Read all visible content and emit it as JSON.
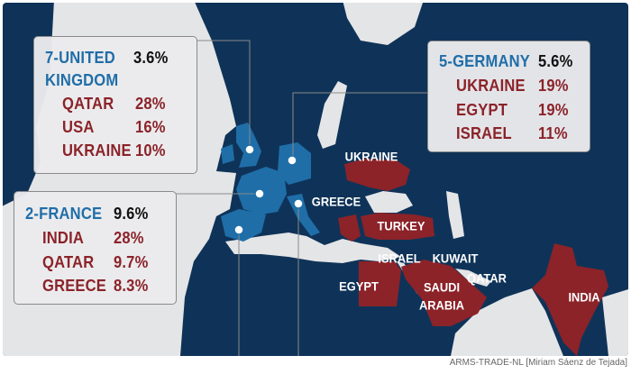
{
  "colors": {
    "sea": "#e4e5e7",
    "land": "#0f3358",
    "exporter": "#1f6ea8",
    "importer": "#8b2329"
  },
  "exporters": [
    {
      "title_line1": "7-UNITED",
      "title_line2": "KINGDOM",
      "share": "3.6%",
      "rows": [
        {
          "country": "QATAR",
          "pct": "28%"
        },
        {
          "country": "USA",
          "pct": "16%"
        },
        {
          "country": "UKRAINE",
          "pct": "10%"
        }
      ]
    },
    {
      "title_line1": "5-GERMANY",
      "share": "5.6%",
      "rows": [
        {
          "country": "UKRAINE",
          "pct": "19%"
        },
        {
          "country": "EGYPT",
          "pct": "19%"
        },
        {
          "country": "ISRAEL",
          "pct": "11%"
        }
      ]
    },
    {
      "title_line1": "2-FRANCE",
      "share": "9.6%",
      "rows": [
        {
          "country": "INDIA",
          "pct": "28%"
        },
        {
          "country": "QATAR",
          "pct": "9.7%"
        },
        {
          "country": "GREECE",
          "pct": "8.3%"
        }
      ]
    }
  ],
  "map_labels": {
    "ukraine": "UKRAINE",
    "greece": "GREECE",
    "turkey": "TURKEY",
    "israel": "ISRAEL",
    "kuwait": "KUWAIT",
    "qatar": "QATAR",
    "egypt": "EGYPT",
    "saudi_1": "SAUDI",
    "saudi_2": "ARABIA",
    "india": "INDIA"
  },
  "caption": "ARMS-TRADE-NL [Miriam Sáenz de Tejada]"
}
